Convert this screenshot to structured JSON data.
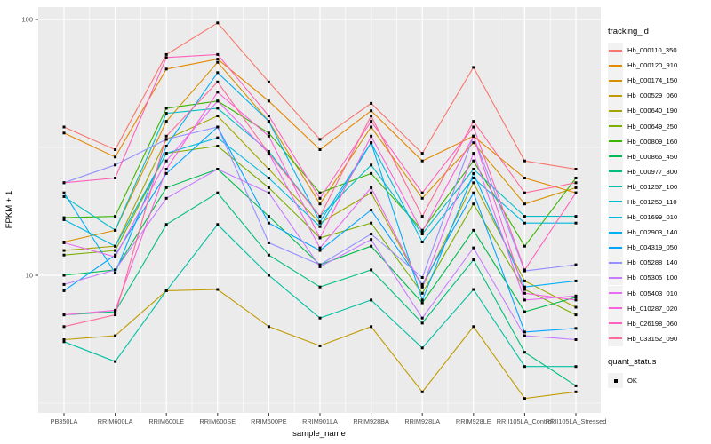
{
  "figure": {
    "background": "#FFFFFF"
  },
  "panel": {
    "background": "#EBEBEB",
    "grid_color": "#FFFFFF",
    "tick_color": "#333333",
    "tick_label_color": "#4D4D4D"
  },
  "axes": {
    "x": {
      "title": "sample_name"
    },
    "y": {
      "title": "FPKM + 1",
      "scale": "log10",
      "tick_labels": [
        "100",
        "10"
      ]
    }
  },
  "legend": {
    "tracking": {
      "title": "tracking_id"
    },
    "quant": {
      "title": "quant_status",
      "items": [
        {
          "label": "OK",
          "glyph": "black-square-point"
        }
      ]
    }
  },
  "chart_data": {
    "type": "line",
    "title": "",
    "xlabel": "sample_name",
    "ylabel": "FPKM + 1",
    "yscale": "log10",
    "ylim": [
      2.9,
      110
    ],
    "yticks": [
      100,
      10
    ],
    "yminor": [
      31.62,
      3.162
    ],
    "grid": true,
    "legend_title": "tracking_id",
    "legend_position": "right",
    "point_color": "#000000",
    "x": [
      "PB350LA",
      "RRIM600LA",
      "RRIM600LE",
      "RRIM600SE",
      "RRIM600PE",
      "RRIM901LA",
      "RRIM928BA",
      "RRIM928LA",
      "RRIM928LE",
      "RRII105LA_Control",
      "RRII105LA_Stressed"
    ],
    "series": [
      {
        "name": "Hb_000110_350",
        "color": "#F8766D",
        "values": [
          38,
          31,
          73,
          97,
          57,
          34,
          47,
          30,
          65,
          28,
          26
        ]
      },
      {
        "name": "Hb_000120_910",
        "color": "#E58700",
        "values": [
          36,
          29,
          64,
          70,
          48,
          31,
          44,
          28,
          35,
          24,
          21
        ]
      },
      {
        "name": "Hb_000174_150",
        "color": "#D89000",
        "values": [
          13.5,
          15,
          40,
          68,
          40,
          19,
          38,
          20,
          33,
          19,
          22
        ]
      },
      {
        "name": "Hb_000529_060",
        "color": "#C09B00",
        "values": [
          5.6,
          5.8,
          8.7,
          8.8,
          6.3,
          5.3,
          6.3,
          3.5,
          6.3,
          3.3,
          3.5
        ]
      },
      {
        "name": "Hb_000640_190",
        "color": "#A3A500",
        "values": [
          12.5,
          13,
          34,
          42,
          26,
          16,
          21,
          9.0,
          23,
          9.5,
          7.5
        ]
      },
      {
        "name": "Hb_000649_250",
        "color": "#7CAE00",
        "values": [
          12,
          12.5,
          30,
          32,
          22,
          14,
          16,
          8.5,
          19,
          8.8,
          7.0
        ]
      },
      {
        "name": "Hb_000809_160",
        "color": "#39B600",
        "values": [
          16.8,
          17,
          45,
          48,
          36,
          21,
          25,
          15,
          28,
          13,
          24
        ]
      },
      {
        "name": "Hb_000866_450",
        "color": "#00BB4E",
        "values": [
          10,
          10.5,
          22,
          26,
          17,
          11,
          13,
          7.8,
          15,
          7.2,
          8.2
        ]
      },
      {
        "name": "Hb_000977_300",
        "color": "#00BF7D",
        "values": [
          7.0,
          7.2,
          15.8,
          21,
          12,
          9.0,
          10.5,
          6.5,
          11.5,
          5.0,
          3.7
        ]
      },
      {
        "name": "Hb_001257_100",
        "color": "#00C1A3",
        "values": [
          5.5,
          4.6,
          8.7,
          15.8,
          10,
          6.8,
          8.0,
          5.2,
          8.8,
          4.4,
          4.4
        ]
      },
      {
        "name": "Hb_001259_110",
        "color": "#00BFC4",
        "values": [
          20.3,
          15,
          43,
          45,
          30.5,
          17,
          27,
          14.5,
          26,
          17,
          17
        ]
      },
      {
        "name": "Hb_001699_010",
        "color": "#00BAE0",
        "values": [
          16.5,
          13,
          30,
          34.5,
          24,
          15.5,
          33,
          13.5,
          24,
          16,
          16
        ]
      },
      {
        "name": "Hb_002903_140",
        "color": "#00B0F6",
        "values": [
          21,
          10.2,
          32,
          62,
          40,
          16.2,
          33,
          8.0,
          25,
          9.0,
          9.5
        ]
      },
      {
        "name": "Hb_004319_050",
        "color": "#00A5FF",
        "values": [
          8.7,
          12,
          25,
          38,
          16,
          12.5,
          18,
          9.2,
          21,
          6.0,
          6.2
        ]
      },
      {
        "name": "Hb_005288_140",
        "color": "#9590FF",
        "values": [
          23,
          27,
          34,
          38,
          13.4,
          11,
          14.5,
          9.8,
          35,
          10.4,
          11
        ]
      },
      {
        "name": "Hb_005305_100",
        "color": "#C77CFF",
        "values": [
          9.2,
          10.5,
          20,
          26,
          21,
          10.8,
          13.8,
          6.8,
          12.8,
          5.8,
          5.6
        ]
      },
      {
        "name": "Hb_005403_010",
        "color": "#E76BF3",
        "values": [
          13.4,
          11.8,
          28,
          48,
          30,
          12.8,
          22,
          9.0,
          30,
          8.0,
          8.3
        ]
      },
      {
        "name": "Hb_010287_020",
        "color": "#FA62DB",
        "values": [
          7.0,
          7.3,
          26,
          52,
          35,
          14,
          35,
          14.8,
          35,
          8.5,
          8.0
        ]
      },
      {
        "name": "Hb_026198_060",
        "color": "#FF62BC",
        "values": [
          23,
          24,
          71,
          73,
          42,
          20,
          40,
          21,
          38,
          10.5,
          21
        ]
      },
      {
        "name": "Hb_033152_090",
        "color": "#FF6A98",
        "values": [
          6.3,
          7.0,
          35,
          57,
          30,
          17,
          42,
          17,
          40,
          21,
          23
        ]
      }
    ]
  }
}
